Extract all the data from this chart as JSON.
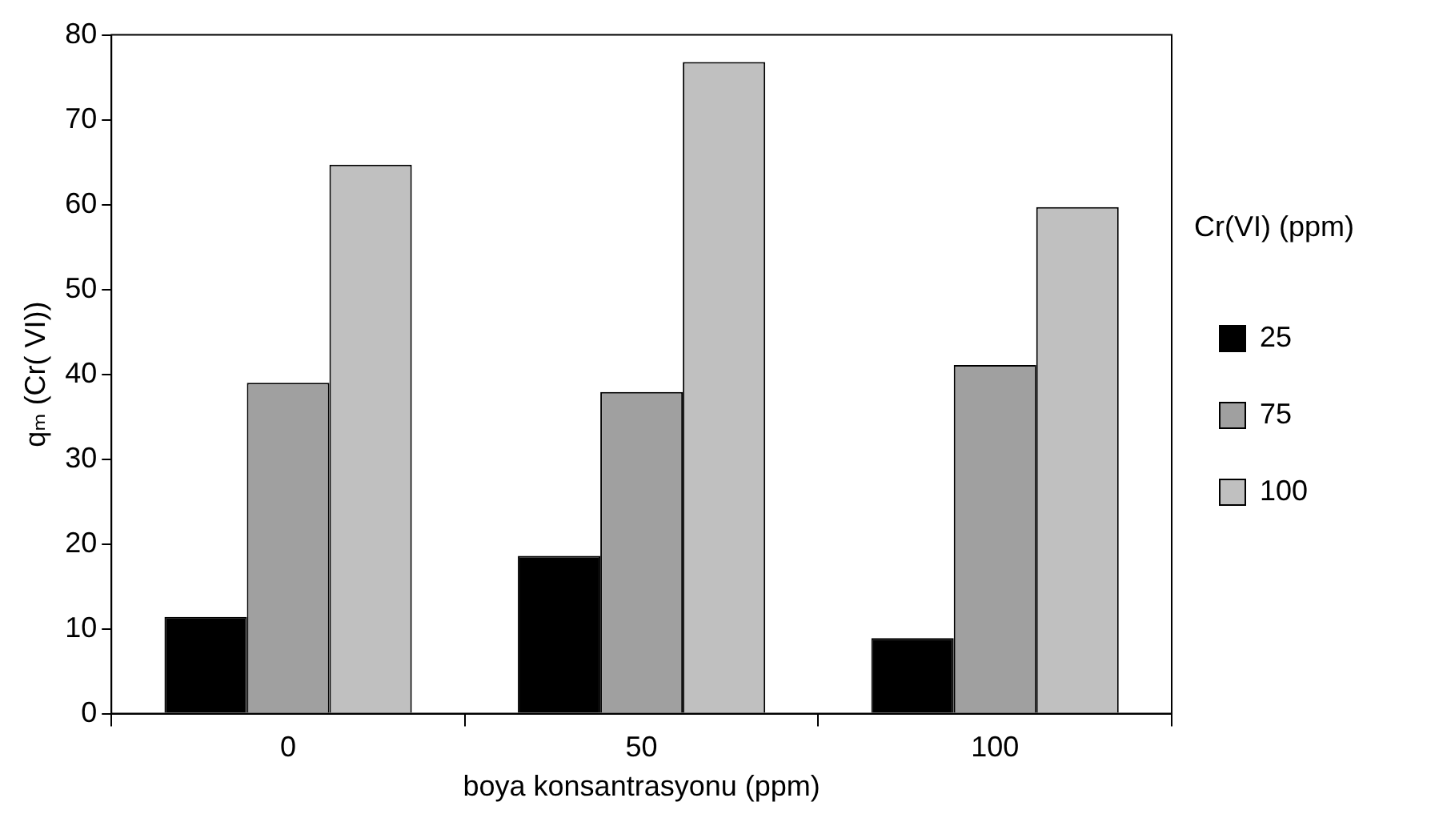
{
  "chart_data": {
    "type": "bar",
    "xlabel": "boya konsantrasyonu (ppm)",
    "ylabel": "qₘ (Cr( VI))",
    "legend_title": "Cr(VI) (ppm)",
    "categories": [
      "0",
      "50",
      "100"
    ],
    "series": [
      {
        "name": "25",
        "color": "#000000",
        "values": [
          11.4,
          18.6,
          8.9
        ]
      },
      {
        "name": "75",
        "color": "#a0a0a0",
        "values": [
          39,
          37.9,
          41.1
        ]
      },
      {
        "name": "100",
        "color": "#c0c0c0",
        "values": [
          64.7,
          76.8,
          59.7
        ]
      }
    ],
    "ylim": [
      0,
      80
    ],
    "yticks": [
      0,
      10,
      20,
      30,
      40,
      50,
      60,
      70,
      80
    ],
    "grid": false,
    "legend": "right"
  }
}
